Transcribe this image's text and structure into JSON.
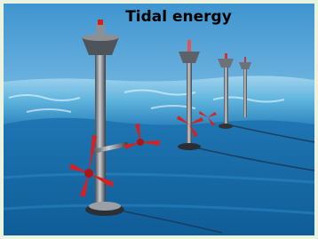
{
  "title": "Tidal energy"
}
